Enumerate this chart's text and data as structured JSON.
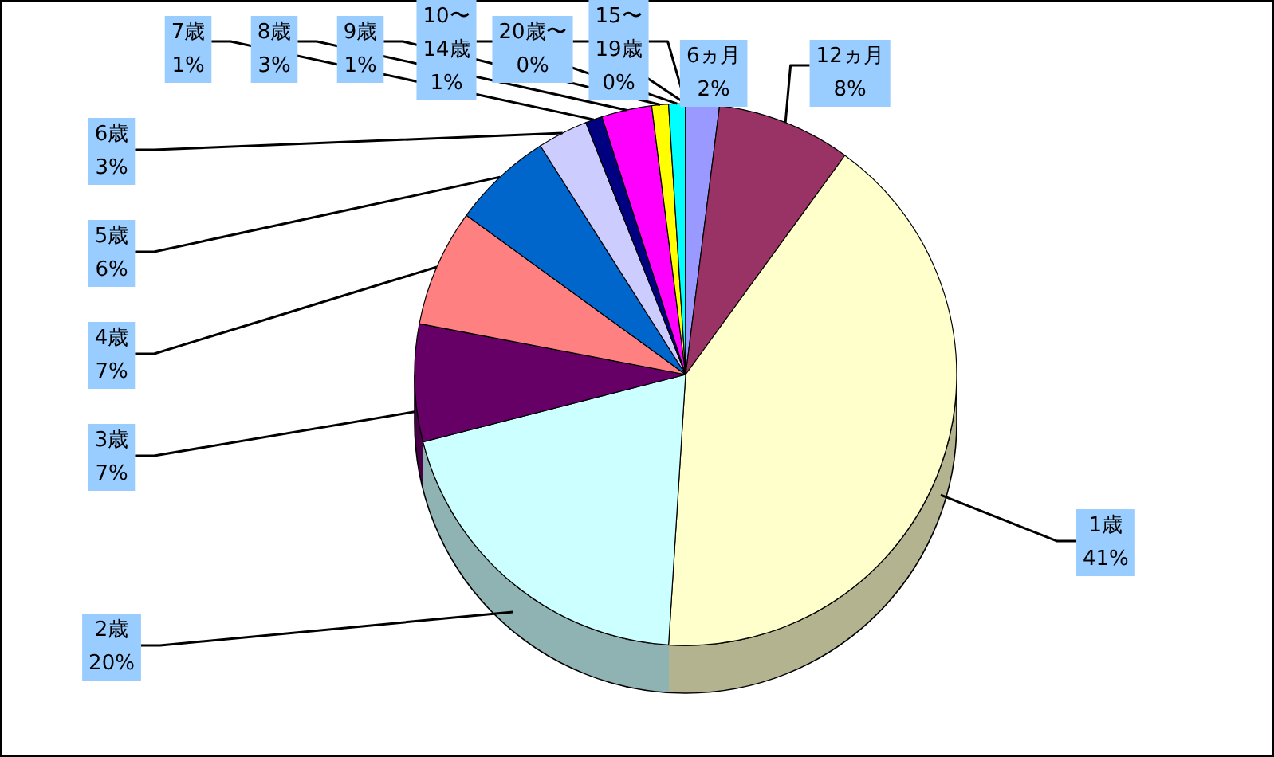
{
  "chart_data": {
    "type": "pie",
    "categories": [
      "6ヵ月",
      "12ヵ月",
      "1歳",
      "2歳",
      "3歳",
      "4歳",
      "5歳",
      "6歳",
      "7歳",
      "8歳",
      "9歳",
      "10〜14歳",
      "15〜19歳",
      "20歳〜"
    ],
    "values": [
      2,
      8,
      41,
      20,
      7,
      7,
      6,
      3,
      1,
      3,
      1,
      1,
      0,
      0
    ],
    "value_labels": [
      "2%",
      "8%",
      "41%",
      "20%",
      "7%",
      "7%",
      "6%",
      "3%",
      "1%",
      "3%",
      "1%",
      "1%",
      "0%",
      "0%"
    ],
    "colors": [
      "#9999ff",
      "#993366",
      "#ffffcc",
      "#ccffff",
      "#660066",
      "#ff8080",
      "#0066cc",
      "#ccccff",
      "#000080",
      "#ff00ff",
      "#ffff00",
      "#00ffff",
      "#800080",
      "#800000"
    ]
  }
}
